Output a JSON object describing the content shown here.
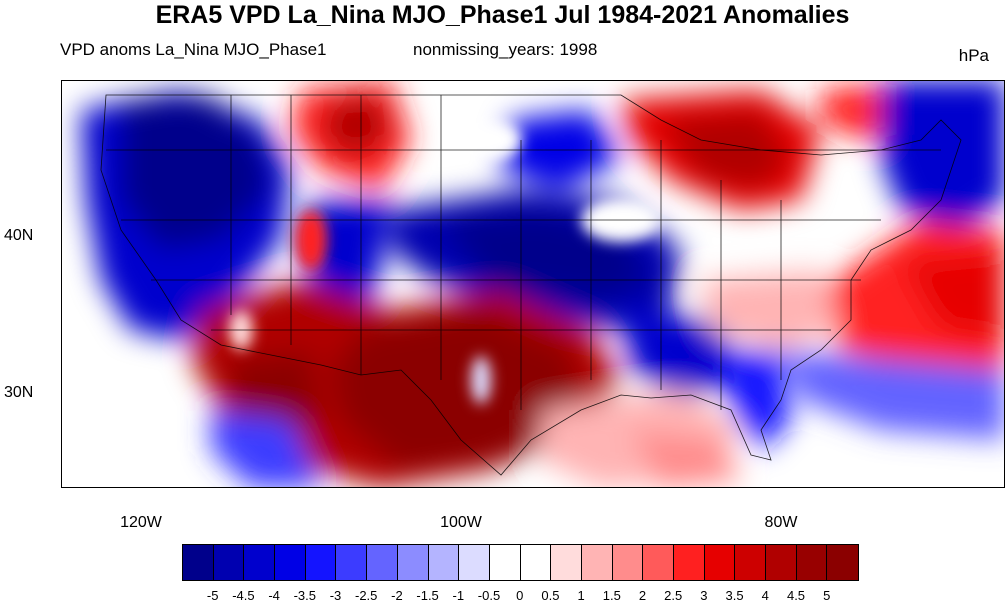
{
  "title": "ERA5 VPD La_Nina MJO_Phase1 Jul 1984-2021 Anomalies",
  "subtitle_left": "VPD anoms La_Nina MJO_Phase1",
  "subtitle_center": "nonmissing_years: 1998",
  "units": "hPa",
  "y_ticks": [
    {
      "label": "40N",
      "lat": 40
    },
    {
      "label": "30N",
      "lat": 30
    }
  ],
  "x_ticks": [
    {
      "label": "120W",
      "lon": -120
    },
    {
      "label": "100W",
      "lon": -100
    },
    {
      "label": "80W",
      "lon": -80
    }
  ],
  "map_extent": {
    "lon_min": -125,
    "lon_max": -66,
    "lat_min": 24,
    "lat_max": 50
  },
  "colorbar": {
    "labels": [
      "-5",
      "-4.5",
      "-4",
      "-3.5",
      "-3",
      "-2.5",
      "-2",
      "-1.5",
      "-1",
      "-0.5",
      "0",
      "0.5",
      "1",
      "1.5",
      "2",
      "2.5",
      "3",
      "3.5",
      "4",
      "4.5",
      "5"
    ],
    "colors": [
      "#00008b",
      "#0000b0",
      "#0000cd",
      "#0000e6",
      "#1414ff",
      "#3c3cff",
      "#6464ff",
      "#8c8cff",
      "#b4b4ff",
      "#dcdcff",
      "#ffffff",
      "#ffffff",
      "#ffdcdc",
      "#ffb4b4",
      "#ff8c8c",
      "#ff5a5a",
      "#ff2020",
      "#e60000",
      "#cd0000",
      "#b00000",
      "#980000",
      "#8b0000"
    ]
  }
}
